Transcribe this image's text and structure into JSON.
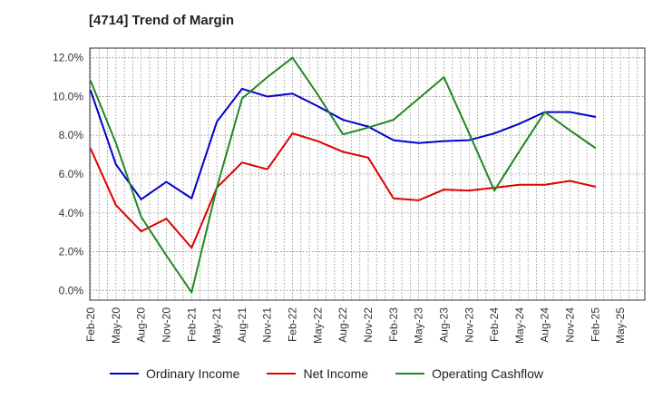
{
  "title": "[4714]  Trend of Margin",
  "chart_data": {
    "type": "line",
    "title": "[4714]  Trend of Margin",
    "xlabel": "",
    "ylabel": "",
    "ylim": [
      0.0,
      12.0
    ],
    "ytick_labels": [
      "0.0%",
      "2.0%",
      "4.0%",
      "6.0%",
      "8.0%",
      "10.0%",
      "12.0%"
    ],
    "ytick_values": [
      0,
      2,
      4,
      6,
      8,
      10,
      12
    ],
    "x": [
      "Feb-20",
      "May-20",
      "Aug-20",
      "Nov-20",
      "Feb-21",
      "May-21",
      "Aug-21",
      "Nov-21",
      "Feb-22",
      "May-22",
      "Aug-22",
      "Nov-22",
      "Feb-23",
      "May-23",
      "Aug-23",
      "Nov-23",
      "Feb-24",
      "May-24",
      "Aug-24",
      "Nov-24",
      "Feb-25",
      "May-25"
    ],
    "grid": true,
    "legend_position": "bottom",
    "series": [
      {
        "name": "Ordinary Income",
        "color": "#0000cc",
        "values": [
          10.3,
          6.5,
          4.7,
          5.6,
          4.75,
          8.7,
          10.4,
          10.0,
          10.15,
          9.5,
          8.8,
          8.45,
          7.75,
          7.6,
          7.7,
          7.75,
          8.1,
          8.6,
          9.2,
          9.2,
          8.95,
          null
        ]
      },
      {
        "name": "Net Income",
        "color": "#e00000",
        "values": [
          7.3,
          4.4,
          3.05,
          3.7,
          2.2,
          5.3,
          6.6,
          6.25,
          8.1,
          7.7,
          7.15,
          6.85,
          4.75,
          4.65,
          5.2,
          5.15,
          5.3,
          5.45,
          5.45,
          5.65,
          5.35,
          null
        ]
      },
      {
        "name": "Operating Cashflow",
        "color": "#228822",
        "values": [
          10.8,
          7.6,
          3.8,
          1.8,
          -0.1,
          5.3,
          9.9,
          11.0,
          12.0,
          10.1,
          8.05,
          8.4,
          8.8,
          9.9,
          11.0,
          8.1,
          5.15,
          7.2,
          9.2,
          8.25,
          7.35,
          null
        ]
      }
    ]
  }
}
